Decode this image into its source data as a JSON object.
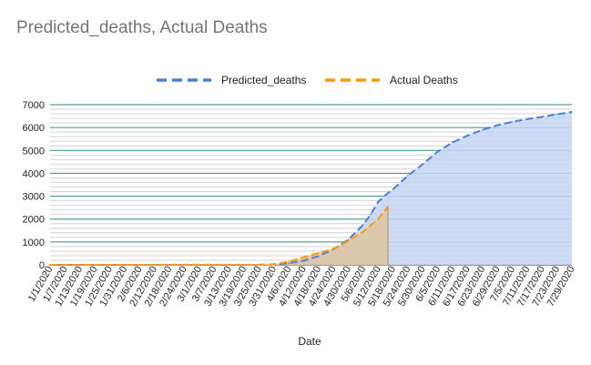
{
  "chart_data": {
    "type": "area",
    "title": "Predicted_deaths, Actual Deaths",
    "xlabel": "Date",
    "ylabel": "",
    "ylim": [
      0,
      7000
    ],
    "yticks": [
      0,
      1000,
      2000,
      3000,
      4000,
      5000,
      6000,
      7000
    ],
    "xlim": [
      "1/1/2020",
      "7/29/2020"
    ],
    "xtick_labels": [
      "1/1/2020",
      "1/7/2020",
      "1/13/2020",
      "1/19/2020",
      "1/25/2020",
      "1/31/2020",
      "2/6/2020",
      "2/12/2020",
      "2/18/2020",
      "2/24/2020",
      "3/1/2020",
      "3/7/2020",
      "3/13/2020",
      "3/19/2020",
      "3/25/2020",
      "3/31/2020",
      "4/6/2020",
      "4/12/2020",
      "4/18/2020",
      "4/24/2020",
      "4/30/2020",
      "5/6/2020",
      "5/12/2020",
      "5/18/2020",
      "5/24/2020",
      "5/30/2020",
      "6/5/2020",
      "6/11/2020",
      "6/17/2020",
      "6/23/2020",
      "6/29/2020",
      "7/5/2020",
      "7/11/2020",
      "7/17/2020",
      "7/23/2020",
      "7/29/2020"
    ],
    "grid": true,
    "legend_position": "top",
    "series": [
      {
        "name": "Predicted_deaths",
        "color": "#4a7fdb",
        "fill": "#c6d5f2",
        "line_style": "dashed",
        "x": [
          "1/1/2020",
          "3/25/2020",
          "3/31/2020",
          "4/6/2020",
          "4/12/2020",
          "4/18/2020",
          "4/24/2020",
          "4/30/2020",
          "5/6/2020",
          "5/9/2020",
          "5/12/2020",
          "5/15/2020",
          "5/18/2020",
          "5/24/2020",
          "5/30/2020",
          "6/5/2020",
          "6/11/2020",
          "6/17/2020",
          "6/23/2020",
          "6/29/2020",
          "7/5/2020",
          "7/11/2020",
          "7/17/2020",
          "7/23/2020",
          "7/29/2020"
        ],
        "values": [
          0,
          5,
          20,
          70,
          180,
          380,
          680,
          1100,
          1750,
          2200,
          2750,
          3050,
          3300,
          3900,
          4400,
          4950,
          5350,
          5650,
          5900,
          6100,
          6250,
          6370,
          6470,
          6580,
          6680
        ]
      },
      {
        "name": "Actual Deaths",
        "color": "#ff9900",
        "fill": "#ddc5a5",
        "line_style": "dashed",
        "x": [
          "1/1/2020",
          "3/25/2020",
          "3/31/2020",
          "4/6/2020",
          "4/12/2020",
          "4/18/2020",
          "4/24/2020",
          "4/30/2020",
          "5/6/2020",
          "5/12/2020",
          "5/16/2020"
        ],
        "values": [
          0,
          0,
          30,
          140,
          330,
          520,
          700,
          1050,
          1450,
          2000,
          2550
        ]
      }
    ]
  }
}
